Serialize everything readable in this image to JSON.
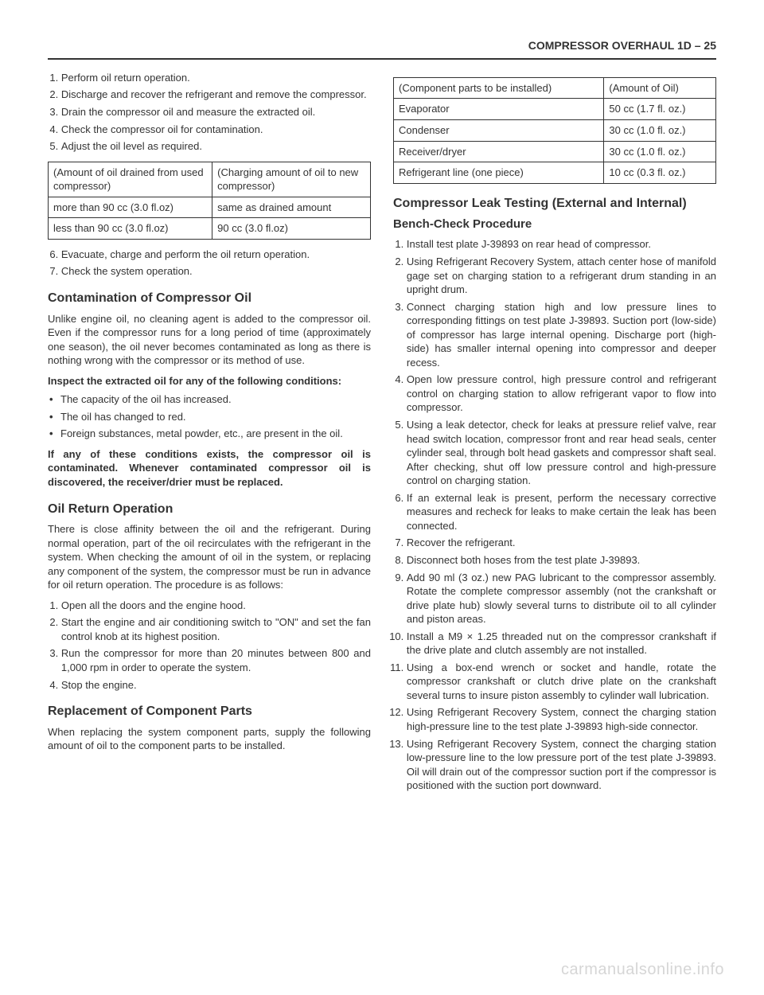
{
  "header": "COMPRESSOR OVERHAUL  1D – 25",
  "left": {
    "top_list": [
      "Perform oil return operation.",
      "Discharge and recover the refrigerant and remove the compressor.",
      "Drain the compressor oil and measure the extracted oil.",
      "Check the compressor oil for contamination.",
      "Adjust the oil level as required."
    ],
    "table1": {
      "h1": "(Amount of oil drained from used compressor)",
      "h2": "(Charging amount of oil to new compressor)",
      "r1c1": "more than 90 cc (3.0 fl.oz)",
      "r1c2": "same as drained amount",
      "r2c1": "less than 90 cc (3.0 fl.oz)",
      "r2c2": "90 cc (3.0 fl.oz)"
    },
    "mid_list": [
      "Evacuate, charge and perform the oil return operation.",
      "Check the system operation."
    ],
    "sec1_title": "Contamination of Compressor Oil",
    "sec1_p1": "Unlike engine oil, no cleaning agent is added to the compressor oil. Even if the compressor runs for a long period of time (approximately one season), the oil never becomes contaminated as long as there is nothing wrong with the compressor or its method of use.",
    "sec1_bold": "Inspect the extracted oil for any of the following conditions:",
    "sec1_bullets": [
      "The capacity of the oil has increased.",
      "The oil has changed to red.",
      "Foreign substances, metal powder, etc., are present in the oil."
    ],
    "sec1_bold2": "If any of these conditions exists, the compressor oil is contaminated. Whenever contaminated compressor oil is discovered, the receiver/drier must be replaced.",
    "sec2_title": "Oil Return Operation",
    "sec2_p1": "There is close affinity between the oil and the refrigerant. During normal operation, part of the oil recirculates with the refrigerant in the system. When checking the amount of oil in the system, or replacing any component of the system, the compressor must be run in advance for oil return operation. The procedure is as follows:",
    "sec2_list": [
      "Open all the doors and the engine hood.",
      "Start the engine and air conditioning switch to \"ON\" and set the fan control knob at its highest position.",
      "Run the compressor for more than 20 minutes between 800 and 1,000 rpm in order to operate the system.",
      "Stop the engine."
    ],
    "sec3_title": "Replacement of Component Parts",
    "sec3_p1": "When replacing the system component parts, supply the following amount of oil to the component parts to be installed."
  },
  "right": {
    "table2": {
      "h1": "(Component parts to be installed)",
      "h2": "(Amount of Oil)",
      "rows": [
        [
          "Evaporator",
          "50 cc (1.7 fl. oz.)"
        ],
        [
          "Condenser",
          "30 cc (1.0 fl. oz.)"
        ],
        [
          "Receiver/dryer",
          "30 cc (1.0 fl. oz.)"
        ],
        [
          "Refrigerant line (one piece)",
          "10 cc (0.3 fl. oz.)"
        ]
      ]
    },
    "sec4_title": "Compressor Leak Testing (External and Internal)",
    "sec4_sub": "Bench-Check Procedure",
    "sec4_list": [
      "Install test plate J-39893 on rear head of compressor.",
      "Using Refrigerant Recovery System, attach center hose of manifold gage set on charging station to a refrigerant drum standing in an upright drum.",
      "Connect charging station high and low pressure lines to corresponding fittings on test plate J-39893. Suction port (low-side) of compressor has large internal opening. Discharge port (high-side) has smaller internal opening into compressor and deeper recess.",
      "Open low pressure control, high pressure control and refrigerant control on charging station to allow refrigerant vapor to flow into compressor.",
      "Using a leak detector, check for leaks at pressure relief valve, rear head switch location, compressor front and rear head seals, center cylinder seal, through bolt head gaskets and compressor shaft seal. After checking, shut off low pressure control and high-pressure control on charging station.",
      "If an external leak is present, perform the necessary corrective measures and recheck for leaks to make certain the leak has been connected.",
      "Recover the refrigerant.",
      "Disconnect both hoses from the test plate J-39893.",
      "Add 90 ml (3 oz.) new PAG lubricant to the compressor assembly. Rotate the complete compressor assembly (not the crankshaft or drive plate hub) slowly several turns to distribute oil to all cylinder and piston areas.",
      "Install a M9 × 1.25 threaded nut on the compressor crankshaft if the drive plate and clutch assembly are not installed.",
      "Using a box-end wrench or socket and handle, rotate the compressor crankshaft or clutch drive plate on the crankshaft several turns to insure piston assembly to cylinder wall lubrication.",
      "Using Refrigerant Recovery System, connect the charging station high-pressure line to the test plate J-39893 high-side connector.",
      "Using Refrigerant Recovery System, connect the charging station low-pressure line to the low pressure port of the test plate J-39893. Oil will drain out of the compressor suction port if the compressor is positioned with the suction port downward."
    ]
  },
  "watermark": "carmanualsonline.info"
}
